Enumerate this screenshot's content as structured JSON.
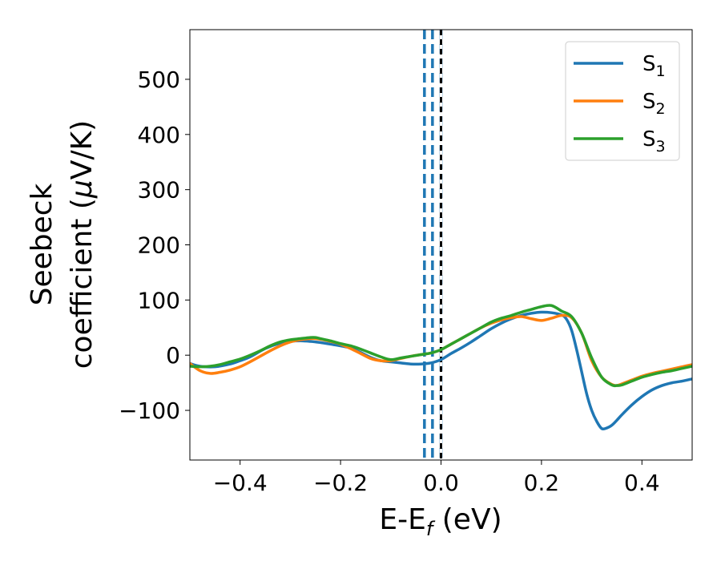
{
  "chart_data": {
    "type": "line",
    "title": "",
    "xlabel": "E-E",
    "xlabel_sub": "f",
    "xlabel_unit": " (eV)",
    "ylabel_line1": "Seebeck",
    "ylabel_line2": "coefficient  (",
    "ylabel_mu": "μ",
    "ylabel_tail": "V/K)",
    "xlim": [
      -0.5,
      0.5
    ],
    "ylim": [
      -190,
      590
    ],
    "xticks": [
      -0.4,
      -0.2,
      0.0,
      0.2,
      0.4
    ],
    "xtick_labels": [
      "−0.4",
      "−0.2",
      "0.0",
      "0.2",
      "0.4"
    ],
    "yticks": [
      -100,
      0,
      100,
      200,
      300,
      400,
      500
    ],
    "ytick_labels": [
      "−100",
      "0",
      "100",
      "200",
      "300",
      "400",
      "500"
    ],
    "legend_position": "top-right",
    "grid": false,
    "series": [
      {
        "name": "S1",
        "label_main": "S",
        "label_sub": "1",
        "color": "#1f77b4",
        "x": [
          -0.5,
          -0.48,
          -0.45,
          -0.42,
          -0.4,
          -0.38,
          -0.35,
          -0.32,
          -0.3,
          -0.28,
          -0.26,
          -0.25,
          -0.24,
          -0.22,
          -0.2,
          -0.18,
          -0.16,
          -0.14,
          -0.12,
          -0.1,
          -0.08,
          -0.06,
          -0.04,
          -0.02,
          0.0,
          0.02,
          0.04,
          0.06,
          0.08,
          0.1,
          0.12,
          0.14,
          0.16,
          0.18,
          0.2,
          0.22,
          0.24,
          0.25,
          0.26,
          0.27,
          0.28,
          0.29,
          0.3,
          0.31,
          0.32,
          0.33,
          0.34,
          0.35,
          0.36,
          0.38,
          0.4,
          0.42,
          0.44,
          0.46,
          0.48,
          0.5
        ],
        "y": [
          -15,
          -20,
          -21,
          -16,
          -10,
          -3,
          12,
          22,
          25,
          26,
          25,
          24,
          23,
          20,
          17,
          13,
          5,
          -4,
          -10,
          -12,
          -14,
          -16,
          -16,
          -14,
          -8,
          3,
          13,
          24,
          36,
          48,
          58,
          66,
          72,
          76,
          78,
          77,
          73,
          65,
          45,
          10,
          -30,
          -70,
          -100,
          -120,
          -133,
          -132,
          -127,
          -118,
          -108,
          -90,
          -75,
          -63,
          -55,
          -50,
          -47,
          -43
        ]
      },
      {
        "name": "S2",
        "label_main": "S",
        "label_sub": "2",
        "color": "#ff7f0e",
        "x": [
          -0.5,
          -0.48,
          -0.46,
          -0.44,
          -0.42,
          -0.4,
          -0.38,
          -0.36,
          -0.34,
          -0.32,
          -0.3,
          -0.28,
          -0.26,
          -0.25,
          -0.24,
          -0.22,
          -0.2,
          -0.18,
          -0.16,
          -0.14,
          -0.12,
          -0.1,
          -0.08,
          -0.06,
          -0.04,
          -0.02,
          0.0,
          0.02,
          0.04,
          0.06,
          0.08,
          0.1,
          0.12,
          0.14,
          0.16,
          0.18,
          0.2,
          0.22,
          0.24,
          0.26,
          0.28,
          0.3,
          0.32,
          0.34,
          0.35,
          0.36,
          0.38,
          0.4,
          0.42,
          0.44,
          0.46,
          0.48,
          0.5
        ],
        "y": [
          -15,
          -28,
          -33,
          -31,
          -27,
          -21,
          -12,
          -2,
          8,
          17,
          24,
          28,
          30,
          30,
          29,
          25,
          20,
          12,
          3,
          -6,
          -10,
          -10,
          -6,
          -2,
          1,
          4,
          10,
          20,
          30,
          40,
          50,
          58,
          64,
          68,
          70,
          66,
          63,
          67,
          72,
          68,
          40,
          -10,
          -40,
          -53,
          -55,
          -52,
          -45,
          -38,
          -33,
          -29,
          -25,
          -21,
          -17
        ]
      },
      {
        "name": "S3",
        "label_main": "S",
        "label_sub": "3",
        "color": "#2ca02c",
        "x": [
          -0.5,
          -0.48,
          -0.46,
          -0.44,
          -0.42,
          -0.4,
          -0.38,
          -0.36,
          -0.34,
          -0.32,
          -0.3,
          -0.28,
          -0.26,
          -0.25,
          -0.24,
          -0.22,
          -0.2,
          -0.18,
          -0.16,
          -0.14,
          -0.12,
          -0.1,
          -0.08,
          -0.06,
          -0.04,
          -0.02,
          0.0,
          0.02,
          0.04,
          0.06,
          0.08,
          0.1,
          0.12,
          0.14,
          0.16,
          0.18,
          0.2,
          0.22,
          0.24,
          0.26,
          0.28,
          0.3,
          0.32,
          0.34,
          0.35,
          0.36,
          0.38,
          0.4,
          0.42,
          0.44,
          0.46,
          0.48,
          0.5
        ],
        "y": [
          -20,
          -21,
          -20,
          -17,
          -12,
          -7,
          0,
          8,
          17,
          24,
          28,
          30,
          32,
          32,
          30,
          26,
          21,
          17,
          11,
          4,
          -3,
          -8,
          -5,
          -2,
          1,
          4,
          10,
          20,
          30,
          40,
          50,
          60,
          67,
          72,
          78,
          83,
          88,
          90,
          80,
          70,
          40,
          -5,
          -40,
          -54,
          -55,
          -54,
          -47,
          -40,
          -35,
          -31,
          -28,
          -24,
          -20
        ]
      }
    ],
    "vlines": [
      {
        "x": -0.033,
        "style": "dashed",
        "color": "#1f77b4"
      },
      {
        "x": -0.017,
        "style": "dashed",
        "color": "#1f77b4"
      },
      {
        "x": 0.0,
        "style": "dashed",
        "color": "#1f77b4"
      },
      {
        "x": 0.0,
        "style": "dashed-black",
        "color": "#000000"
      }
    ]
  }
}
